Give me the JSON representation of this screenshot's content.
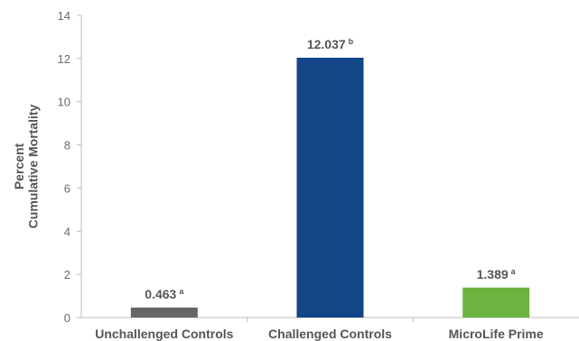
{
  "chart_data": {
    "type": "bar",
    "categories": [
      "Unchallenged Controls",
      "Challenged Controls",
      "MicroLife Prime"
    ],
    "values": [
      0.463,
      12.037,
      1.389
    ],
    "value_labels": [
      "0.463",
      "12.037",
      "1.389"
    ],
    "superscripts": [
      "a",
      "b",
      "a"
    ],
    "colors": [
      "#666666",
      "#134686",
      "#6db33f"
    ],
    "ylabel_lines": [
      "Percent",
      "Cumulative Mortality"
    ],
    "xlabel": "",
    "title": "",
    "ylim": [
      0,
      14
    ],
    "yticks": [
      0,
      2,
      4,
      6,
      8,
      10,
      12,
      14
    ],
    "grid": false
  },
  "colors": {
    "axis": "#bdbdbd",
    "text": "#555555"
  }
}
